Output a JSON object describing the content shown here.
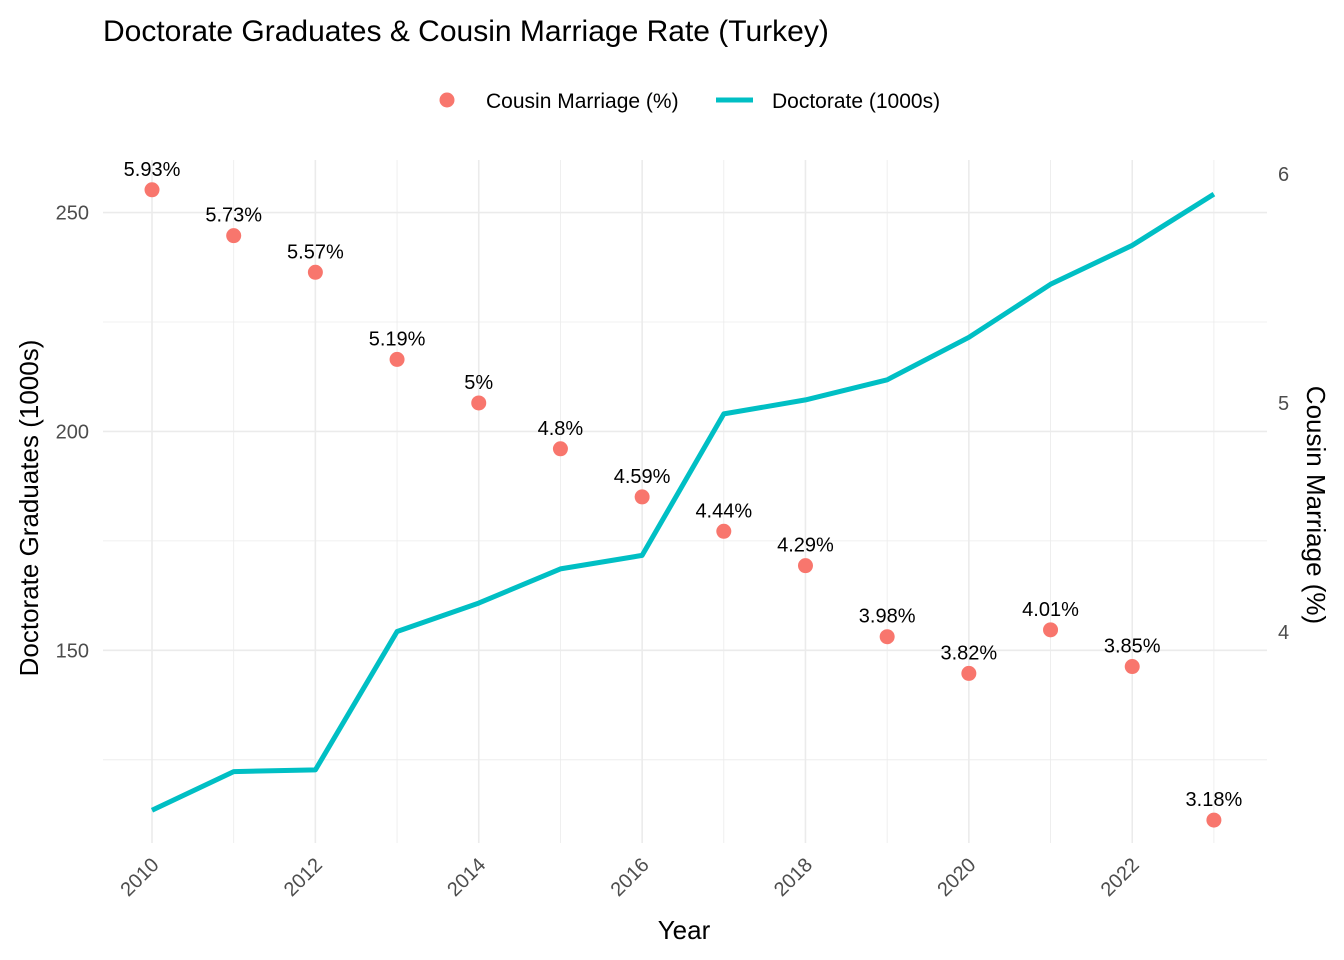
{
  "chart_data": {
    "type": "line",
    "title": "Doctorate Graduates & Cousin Marriage Rate (Turkey)",
    "xlabel": "Year",
    "ylabel": "Doctorate Graduates (1000s)",
    "y2label": "Cousin Marriage (%)",
    "x": [
      2010,
      2011,
      2012,
      2013,
      2014,
      2015,
      2016,
      2017,
      2018,
      2019,
      2020,
      2021,
      2022,
      2023
    ],
    "xticks": [
      "2010",
      "2012",
      "2014",
      "2016",
      "2018",
      "2020",
      "2022"
    ],
    "ylim": [
      106,
      262
    ],
    "yticks": [
      "150",
      "200",
      "250"
    ],
    "y2lim": [
      3.08,
      6.06
    ],
    "y2ticks": [
      "4",
      "5",
      "6"
    ],
    "grid": true,
    "legend_position": "top",
    "series": [
      {
        "name": "Doctorate (1000s)",
        "kind": "line",
        "axis": "left",
        "color": "#00BFC4",
        "values": [
          113.5,
          122.3,
          122.7,
          154.3,
          160.8,
          168.6,
          171.7,
          204.0,
          207.2,
          211.8,
          221.5,
          233.6,
          242.5,
          254.2
        ]
      },
      {
        "name": "Cousin Marriage (%)",
        "kind": "points",
        "axis": "right",
        "color": "#F8766D",
        "values": [
          5.93,
          5.73,
          5.57,
          5.19,
          5.0,
          4.8,
          4.59,
          4.44,
          4.29,
          3.98,
          3.82,
          4.01,
          3.85,
          3.18
        ],
        "labels": [
          "5.93%",
          "5.73%",
          "5.57%",
          "5.19%",
          "5%",
          "4.8%",
          "4.59%",
          "4.44%",
          "4.29%",
          "3.98%",
          "3.82%",
          "4.01%",
          "3.85%",
          "3.18%"
        ]
      }
    ]
  }
}
